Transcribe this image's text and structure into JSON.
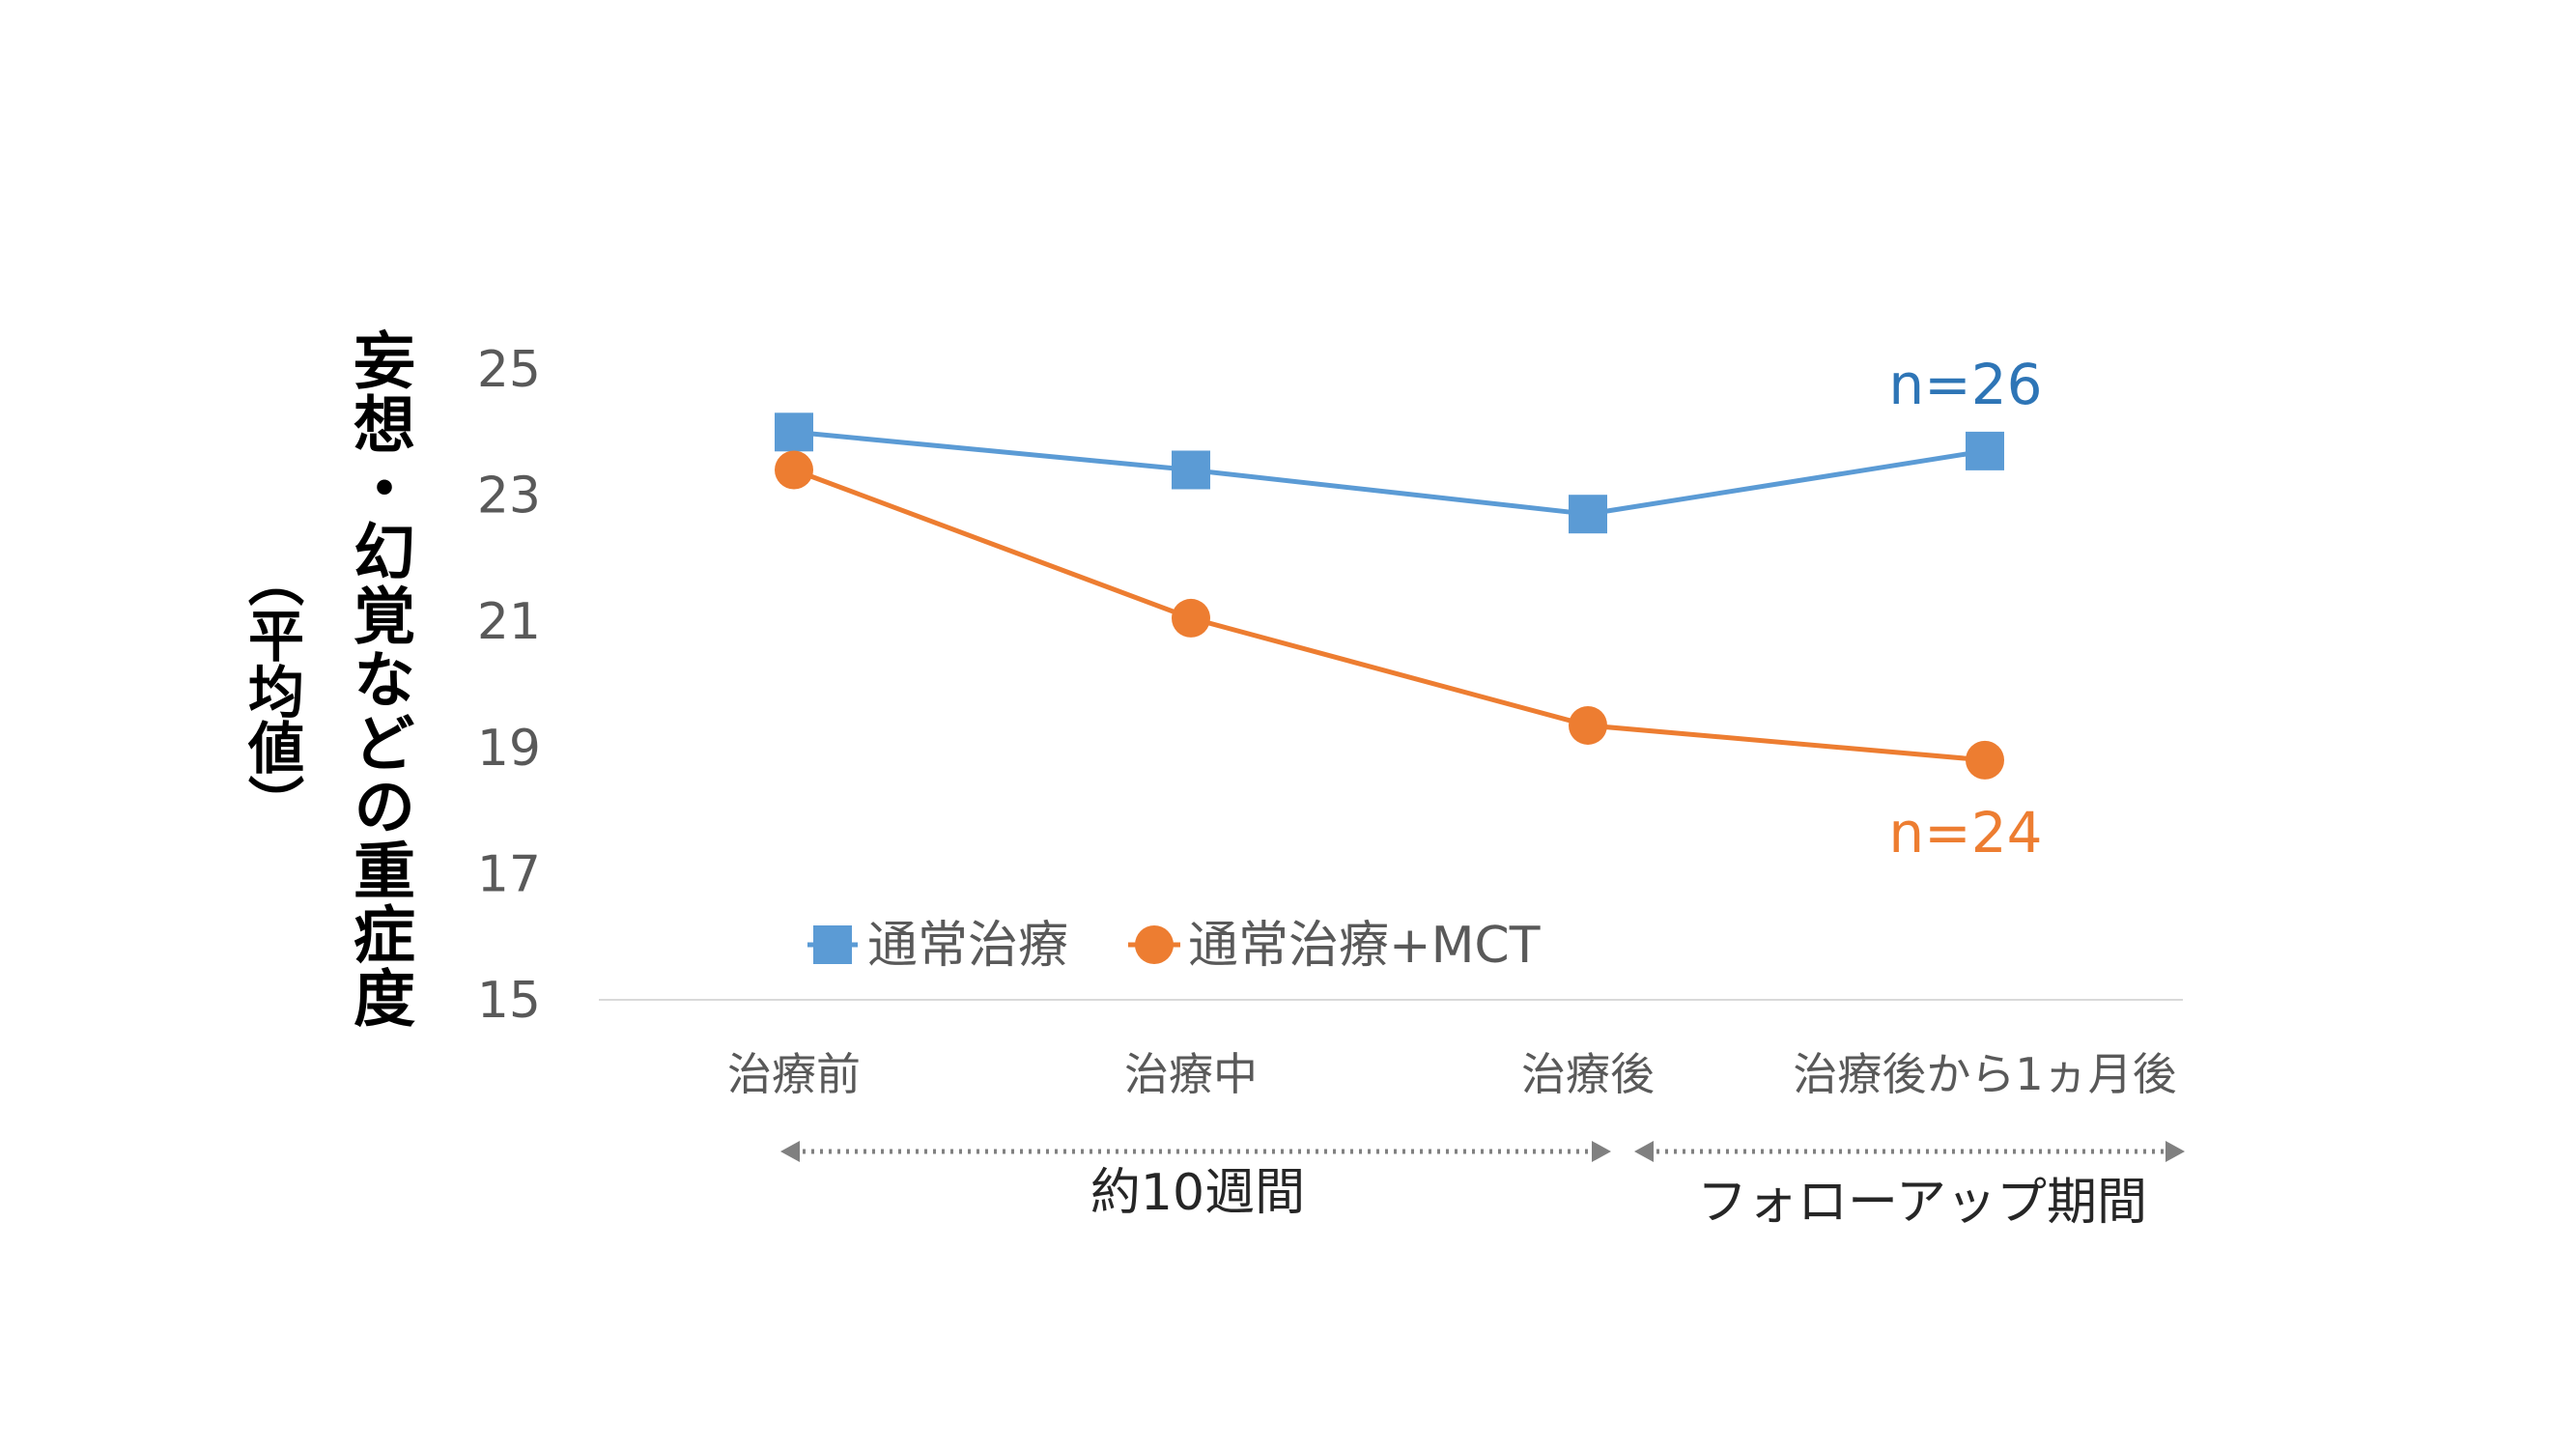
{
  "chart_data": {
    "type": "line",
    "ylabel": "妄想・幻覚などの重症度",
    "ylabel_sub": "（平均値）",
    "ylim": [
      15,
      25
    ],
    "yticks": [
      15,
      17,
      19,
      21,
      23,
      25
    ],
    "categories": [
      "治療前",
      "治療中",
      "治療後",
      "治療後から1ヵ月後"
    ],
    "series": [
      {
        "name": "通常治療",
        "values": [
          24.0,
          23.4,
          22.7,
          23.7
        ],
        "color": "#5b9bd5",
        "marker": "square",
        "annotation": "n=26",
        "annotation_color": "#2e75b6"
      },
      {
        "name": "通常治療+MCT",
        "values": [
          23.4,
          21.05,
          19.35,
          18.8
        ],
        "color": "#ed7d31",
        "marker": "circle",
        "annotation": "n=24",
        "annotation_color": "#ed7d31"
      }
    ],
    "legend_position": "bottom-left",
    "grid": false,
    "periods": [
      {
        "label": "約10週間",
        "from_category": 0,
        "to_category": 2
      },
      {
        "label": "フォローアップ期間",
        "from_category": 2,
        "to_category": 3
      }
    ]
  },
  "colors": {
    "axis_text": "#595959",
    "baseline": "#d9d9d9",
    "period_arrow": "#808080"
  }
}
